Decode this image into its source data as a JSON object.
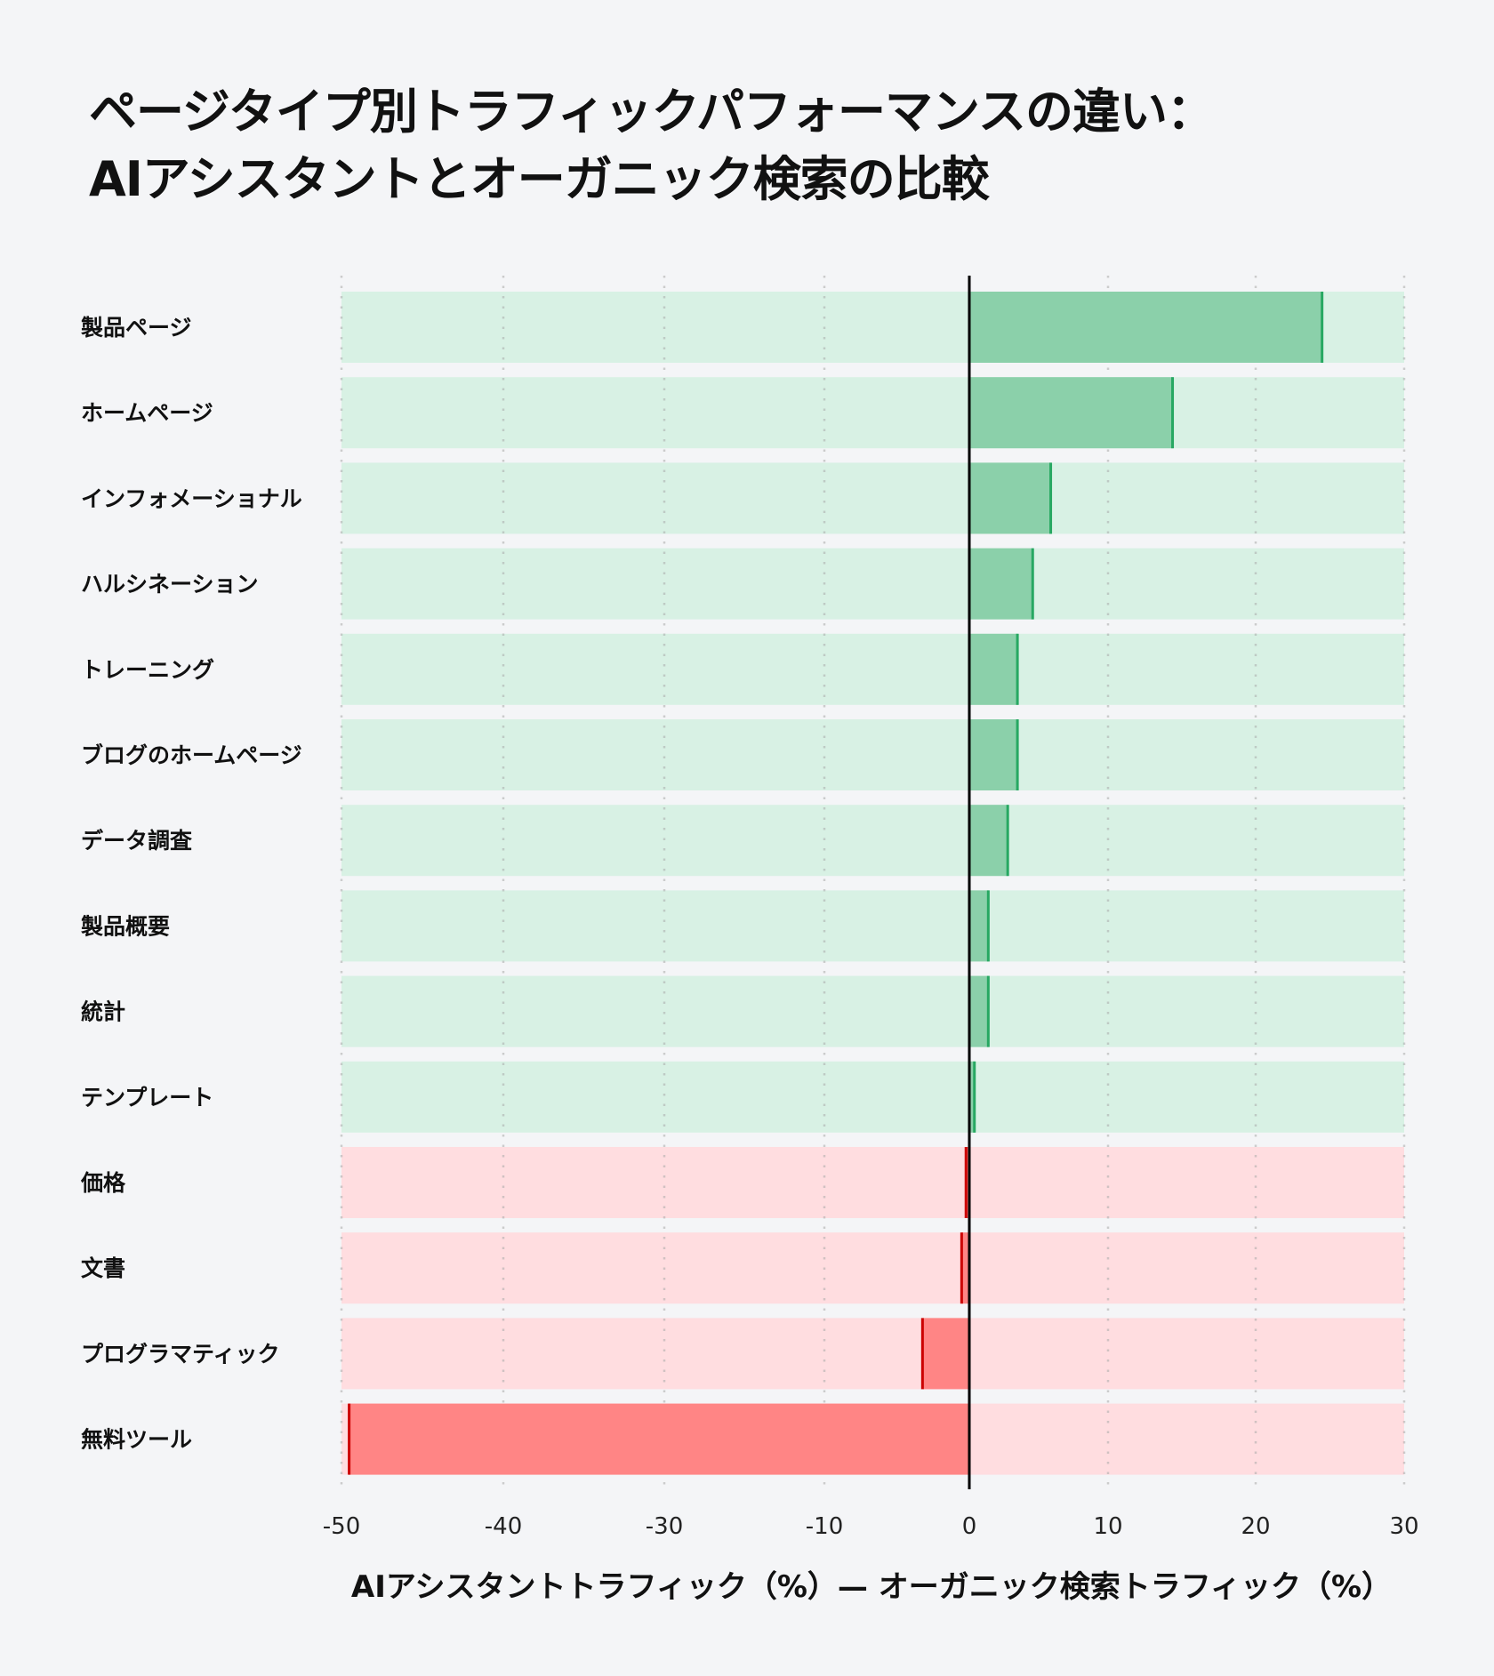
{
  "title_lines": [
    "ページタイプ別トラフィックパフォーマンスの違い：",
    "AIアシスタントとオーガニック検索の比較"
  ],
  "chart_data": {
    "type": "bar",
    "orientation": "horizontal",
    "title": "ページタイプ別トラフィックパフォーマンスの違い：AIアシスタントとオーガニック検索の比較",
    "xlabel": "AIアシスタントトラフィック（%）— オーガニック検索トラフィック（%）",
    "ylabel": "",
    "xlim": [
      -50,
      30
    ],
    "xticks": [
      -50,
      -40,
      -30,
      -10,
      0,
      10,
      20,
      30
    ],
    "grid": "vertical dotted",
    "categories": [
      "製品ページ",
      "ホームページ",
      "インフォメーショナル",
      "ハルシネーション",
      "トレーニング",
      "ブログのホームページ",
      "データ調査",
      "製品概要",
      "統計",
      "テンプレート",
      "価格",
      "文書",
      "プログラマティック",
      "無料ツール"
    ],
    "values": [
      24.5,
      14.4,
      5.9,
      4.6,
      3.5,
      3.5,
      2.8,
      1.4,
      1.4,
      0.4,
      -0.2,
      -0.5,
      -3.2,
      -49.5
    ],
    "colors": {
      "positive_bg": "#d8f1e4",
      "positive_bar": "#8bd0aa",
      "positive_edge": "#27a862",
      "negative_bg": "#ffdde0",
      "negative_bar": "#ff8585",
      "negative_edge": "#cc0000",
      "zero_line": "#000000"
    }
  }
}
